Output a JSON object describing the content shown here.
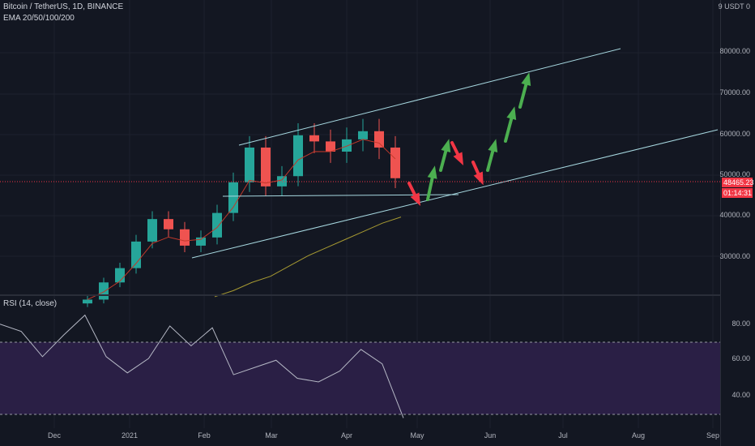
{
  "header": {
    "symbol": "Bitcoin / TetherUS, 1D, BINANCE",
    "indicator": "EMA 20/50/100/200",
    "rsi_label": "RSI (14, close)"
  },
  "price_axis": {
    "top_label": "9 USDT 0",
    "ticks": [
      "80000.00",
      "70000.00",
      "60000.00",
      "50000.00",
      "40000.00",
      "30000.00"
    ]
  },
  "rsi_axis": {
    "ticks": [
      "80.00",
      "60.00",
      "40.00"
    ]
  },
  "time_axis": {
    "ticks": [
      "Dec",
      "2021",
      "Feb",
      "Mar",
      "Apr",
      "May",
      "Jun",
      "Jul",
      "Aug",
      "Sep"
    ]
  },
  "last_price": {
    "price": "48465.23",
    "countdown": "01:14:31"
  },
  "colors": {
    "background": "#131722",
    "bull": "#26a69a",
    "bear": "#ef5350",
    "ema": "#c0392b",
    "ema_long": "#a79a32",
    "trendline": "#a7d8e0",
    "rsi_line": "#b5b8c5",
    "rsi_band": "#2a1f45",
    "arrow_up": "#4caf50",
    "arrow_down": "#f23645"
  },
  "chart_data": {
    "type": "candlestick",
    "series": [
      {
        "name": "BTCUSDT",
        "x": [
          "2020-12-12",
          "2020-12-19",
          "2020-12-26",
          "2021-01-02",
          "2021-01-09",
          "2021-01-16",
          "2021-01-23",
          "2021-01-30",
          "2021-02-06",
          "2021-02-13",
          "2021-02-20",
          "2021-02-27",
          "2021-03-06",
          "2021-03-13",
          "2021-03-20",
          "2021-03-27",
          "2021-04-03",
          "2021-04-10",
          "2021-04-17",
          "2021-04-24"
        ],
        "values": [
          18800,
          23000,
          26500,
          33000,
          38500,
          36000,
          32000,
          34000,
          40000,
          47500,
          56000,
          46500,
          49000,
          59000,
          57500,
          55000,
          58000,
          60000,
          56000,
          48500
        ]
      }
    ],
    "ema200": [
      19500,
      21000,
      23000,
      24500,
      27000,
      29500,
      31500,
      33500,
      35500,
      37500,
      39000
    ],
    "rsi": [
      80,
      76,
      62,
      74,
      85,
      62,
      53,
      61,
      79,
      68,
      78,
      52,
      56,
      60,
      50,
      48,
      54,
      66,
      58,
      28
    ],
    "ylim": [
      20000,
      86000
    ],
    "rsi_levels": [
      70,
      30
    ]
  }
}
